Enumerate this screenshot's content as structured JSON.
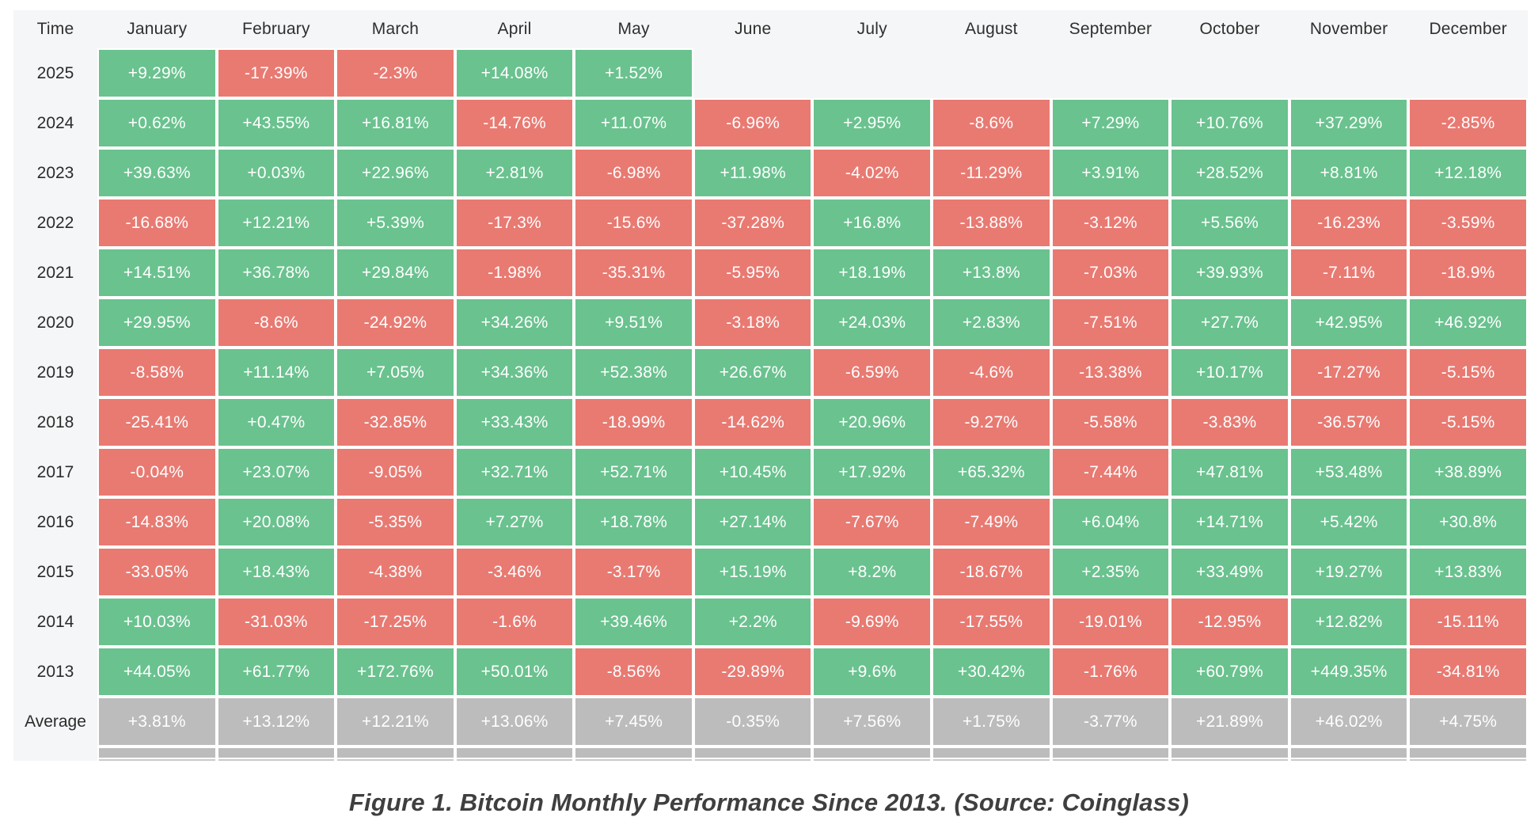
{
  "caption": "Figure 1. Bitcoin Monthly Performance Since 2013. (Source: Coinglass)",
  "colors": {
    "positive_green": "#6ac28f",
    "negative_red": "#e87a72",
    "average_gray": "#bcbcbc",
    "table_background": "#f5f6f7"
  },
  "chart_data": {
    "type": "heatmap",
    "title": "Figure 1. Bitcoin Monthly Performance Since 2013. (Source: Coinglass)",
    "time_column_header": "Time",
    "months": [
      "January",
      "February",
      "March",
      "April",
      "May",
      "June",
      "July",
      "August",
      "September",
      "October",
      "November",
      "December"
    ],
    "rows": [
      {
        "label": "2025",
        "type": "year",
        "values": [
          "+9.29%",
          "-17.39%",
          "-2.3%",
          "+14.08%",
          "+1.52%",
          null,
          null,
          null,
          null,
          null,
          null,
          null
        ]
      },
      {
        "label": "2024",
        "type": "year",
        "values": [
          "+0.62%",
          "+43.55%",
          "+16.81%",
          "-14.76%",
          "+11.07%",
          "-6.96%",
          "+2.95%",
          "-8.6%",
          "+7.29%",
          "+10.76%",
          "+37.29%",
          "-2.85%"
        ]
      },
      {
        "label": "2023",
        "type": "year",
        "values": [
          "+39.63%",
          "+0.03%",
          "+22.96%",
          "+2.81%",
          "-6.98%",
          "+11.98%",
          "-4.02%",
          "-11.29%",
          "+3.91%",
          "+28.52%",
          "+8.81%",
          "+12.18%"
        ]
      },
      {
        "label": "2022",
        "type": "year",
        "values": [
          "-16.68%",
          "+12.21%",
          "+5.39%",
          "-17.3%",
          "-15.6%",
          "-37.28%",
          "+16.8%",
          "-13.88%",
          "-3.12%",
          "+5.56%",
          "-16.23%",
          "-3.59%"
        ]
      },
      {
        "label": "2021",
        "type": "year",
        "values": [
          "+14.51%",
          "+36.78%",
          "+29.84%",
          "-1.98%",
          "-35.31%",
          "-5.95%",
          "+18.19%",
          "+13.8%",
          "-7.03%",
          "+39.93%",
          "-7.11%",
          "-18.9%"
        ]
      },
      {
        "label": "2020",
        "type": "year",
        "values": [
          "+29.95%",
          "-8.6%",
          "-24.92%",
          "+34.26%",
          "+9.51%",
          "-3.18%",
          "+24.03%",
          "+2.83%",
          "-7.51%",
          "+27.7%",
          "+42.95%",
          "+46.92%"
        ]
      },
      {
        "label": "2019",
        "type": "year",
        "values": [
          "-8.58%",
          "+11.14%",
          "+7.05%",
          "+34.36%",
          "+52.38%",
          "+26.67%",
          "-6.59%",
          "-4.6%",
          "-13.38%",
          "+10.17%",
          "-17.27%",
          "-5.15%"
        ]
      },
      {
        "label": "2018",
        "type": "year",
        "values": [
          "-25.41%",
          "+0.47%",
          "-32.85%",
          "+33.43%",
          "-18.99%",
          "-14.62%",
          "+20.96%",
          "-9.27%",
          "-5.58%",
          "-3.83%",
          "-36.57%",
          "-5.15%"
        ]
      },
      {
        "label": "2017",
        "type": "year",
        "values": [
          "-0.04%",
          "+23.07%",
          "-9.05%",
          "+32.71%",
          "+52.71%",
          "+10.45%",
          "+17.92%",
          "+65.32%",
          "-7.44%",
          "+47.81%",
          "+53.48%",
          "+38.89%"
        ]
      },
      {
        "label": "2016",
        "type": "year",
        "values": [
          "-14.83%",
          "+20.08%",
          "-5.35%",
          "+7.27%",
          "+18.78%",
          "+27.14%",
          "-7.67%",
          "-7.49%",
          "+6.04%",
          "+14.71%",
          "+5.42%",
          "+30.8%"
        ]
      },
      {
        "label": "2015",
        "type": "year",
        "values": [
          "-33.05%",
          "+18.43%",
          "-4.38%",
          "-3.46%",
          "-3.17%",
          "+15.19%",
          "+8.2%",
          "-18.67%",
          "+2.35%",
          "+33.49%",
          "+19.27%",
          "+13.83%"
        ]
      },
      {
        "label": "2014",
        "type": "year",
        "values": [
          "+10.03%",
          "-31.03%",
          "-17.25%",
          "-1.6%",
          "+39.46%",
          "+2.2%",
          "-9.69%",
          "-17.55%",
          "-19.01%",
          "-12.95%",
          "+12.82%",
          "-15.11%"
        ]
      },
      {
        "label": "2013",
        "type": "year",
        "values": [
          "+44.05%",
          "+61.77%",
          "+172.76%",
          "+50.01%",
          "-8.56%",
          "-29.89%",
          "+9.6%",
          "+30.42%",
          "-1.76%",
          "+60.79%",
          "+449.35%",
          "-34.81%"
        ]
      },
      {
        "label": "Average",
        "type": "average",
        "values": [
          "+3.81%",
          "+13.12%",
          "+12.21%",
          "+13.06%",
          "+7.45%",
          "-0.35%",
          "+7.56%",
          "+1.75%",
          "-3.77%",
          "+21.89%",
          "+46.02%",
          "+4.75%"
        ]
      }
    ]
  }
}
